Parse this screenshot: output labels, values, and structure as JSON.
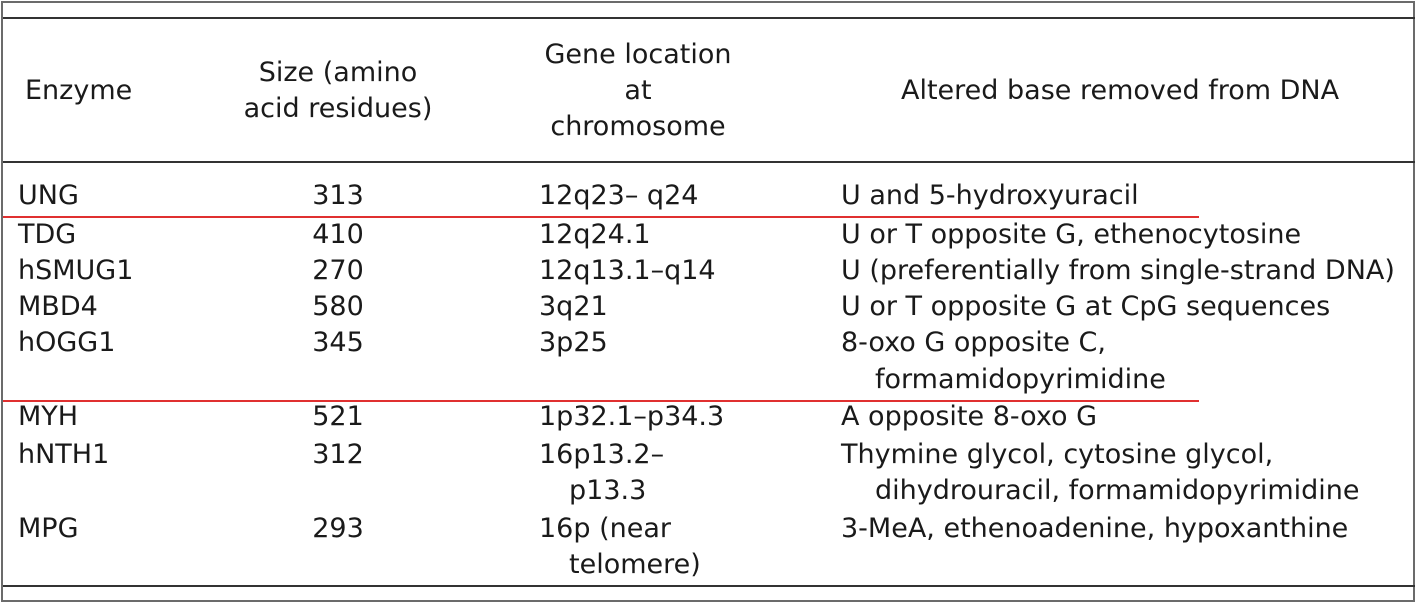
{
  "table": {
    "headers": {
      "enzyme": "Enzyme",
      "size": [
        "Size (amino",
        "acid residues)"
      ],
      "gene": [
        "Gene location",
        "at",
        "chromosome"
      ],
      "base": "Altered base removed from DNA"
    },
    "rows": [
      {
        "enzyme": "UNG",
        "size": "313",
        "gene": [
          "12q23– q24"
        ],
        "base": [
          "U and 5-hydroxyuracil"
        ]
      },
      {
        "enzyme": "TDG",
        "size": "410",
        "gene": [
          "12q24.1"
        ],
        "base": [
          "U or T opposite G, ethenocytosine"
        ]
      },
      {
        "enzyme": "hSMUG1",
        "size": "270",
        "gene": [
          "12q13.1–q14"
        ],
        "base": [
          "U (preferentially from single-strand DNA)"
        ]
      },
      {
        "enzyme": "MBD4",
        "size": "580",
        "gene": [
          "3q21"
        ],
        "base": [
          "U or T opposite G at CpG sequences"
        ]
      },
      {
        "enzyme": "hOGG1",
        "size": "345",
        "gene": [
          "3p25"
        ],
        "base": [
          "8-oxo G opposite C,",
          "formamidopyrimidine"
        ]
      },
      {
        "enzyme": "MYH",
        "size": "521",
        "gene": [
          "1p32.1–p34.3"
        ],
        "base": [
          "A opposite 8-oxo G"
        ]
      },
      {
        "enzyme": "hNTH1",
        "size": "312",
        "gene": [
          "16p13.2–",
          "p13.3"
        ],
        "base": [
          "Thymine glycol, cytosine glycol,",
          "dihydrouracil, formamidopyrimidine"
        ]
      },
      {
        "enzyme": "MPG",
        "size": "293",
        "gene": [
          "16p (near",
          "telomere)"
        ],
        "base": [
          "3-MeA, ethenoadenine, hypoxanthine"
        ]
      }
    ]
  },
  "highlight_color": "#e03030"
}
